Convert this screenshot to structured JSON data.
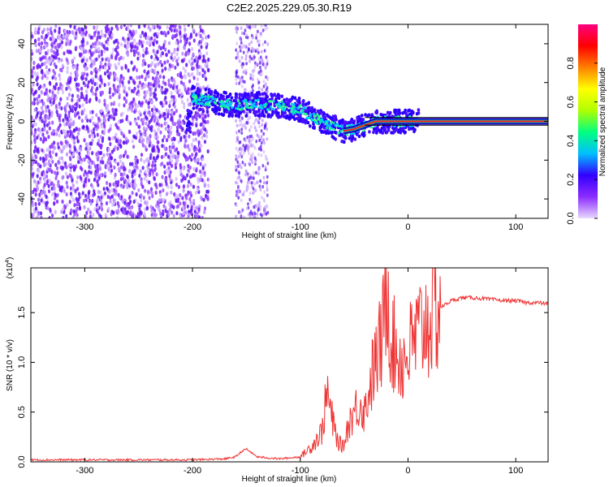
{
  "title": "C2E2.2025.229.05.30.R19",
  "chart_data": [
    {
      "type": "heatmap",
      "xlabel": "Height of straight line (km)",
      "ylabel": "Frequency (Hz)",
      "xlim": [
        -350,
        130
      ],
      "ylim": [
        -50,
        50
      ],
      "xticks": [
        -300,
        -200,
        -100,
        0,
        100
      ],
      "yticks": [
        -40,
        -20,
        0,
        20,
        40
      ],
      "colorbar": {
        "label": "Normalized spectral amplitude",
        "range": [
          0,
          1
        ],
        "ticks": [
          "0.0",
          "0.2",
          "0.4",
          "0.6",
          "0.8"
        ],
        "colors": [
          "#e8d8ff",
          "#8c2cff",
          "#3300ff",
          "#00bfff",
          "#00ff80",
          "#b0ff00",
          "#ffff00",
          "#ff8000",
          "#ff0000",
          "#ff0080"
        ]
      },
      "ridge": {
        "x": [
          -200,
          -180,
          -160,
          -140,
          -120,
          -100,
          -80,
          -60,
          -50,
          -40,
          -30,
          -20,
          0,
          50,
          130
        ],
        "y": [
          12,
          10,
          8,
          9,
          8,
          6,
          0,
          -5,
          -4,
          -2,
          0,
          0,
          0,
          0,
          0
        ]
      }
    },
    {
      "type": "line",
      "xlabel": "Height of straight line (km)",
      "ylabel": "SNR (10 * v/v)",
      "y_multiplier": "(x10",
      "y_multiplier_exp": "4",
      "y_multiplier_close": ")",
      "xlim": [
        -350,
        130
      ],
      "ylim": [
        0,
        1.95
      ],
      "xticks": [
        -300,
        -200,
        -100,
        0,
        100
      ],
      "yticks": [
        "0.0",
        "0.5",
        "1.0",
        "1.5"
      ],
      "color": "#ee3333",
      "series": [
        {
          "x": [
            -350,
            -300,
            -250,
            -200,
            -170,
            -160,
            -155,
            -150,
            -140,
            -120,
            -100,
            -90,
            -80,
            -75,
            -70,
            -65,
            -60,
            -55,
            -50,
            -45,
            -40,
            -35,
            -30,
            -25,
            -22,
            -20,
            -15,
            -10,
            -5,
            0,
            5,
            10,
            20,
            30,
            40,
            50,
            60,
            70,
            80,
            90,
            100,
            110,
            120,
            130
          ],
          "y": [
            0.02,
            0.02,
            0.02,
            0.02,
            0.03,
            0.05,
            0.1,
            0.13,
            0.05,
            0.03,
            0.05,
            0.15,
            0.3,
            0.7,
            0.4,
            0.2,
            0.15,
            0.4,
            0.5,
            0.6,
            0.5,
            0.8,
            1.0,
            1.2,
            1.4,
            1.9,
            1.2,
            1.1,
            1.0,
            1.1,
            1.2,
            1.3,
            1.45,
            1.55,
            1.62,
            1.65,
            1.65,
            1.64,
            1.63,
            1.62,
            1.62,
            1.6,
            1.6,
            1.59
          ]
        }
      ]
    }
  ]
}
